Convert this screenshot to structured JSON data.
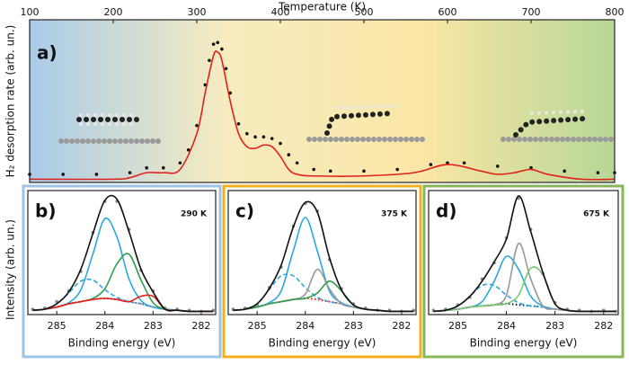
{
  "chart_data": [
    {
      "type": "line",
      "panel_label": "a)",
      "xlabel": "Temperature (K)",
      "ylabel": "H₂ desorption rate (arb. un.)",
      "xaxis_position": "top",
      "background": [
        "#a9cbe9",
        "#f6ecc0",
        "#fbe6a6",
        "#b7d796"
      ],
      "xlim": [
        100,
        800
      ],
      "xticks": [
        100,
        200,
        300,
        400,
        500,
        600,
        700,
        800
      ],
      "ylim": [
        0,
        1
      ],
      "series": [
        {
          "color": "#111111",
          "mode": "markers",
          "x": [
            100,
            140,
            180,
            220,
            240,
            260,
            280,
            290,
            300,
            310,
            315,
            320,
            325,
            330,
            335,
            340,
            350,
            360,
            370,
            380,
            390,
            400,
            410,
            420,
            440,
            460,
            500,
            540,
            580,
            600,
            620,
            660,
            700,
            740,
            780,
            800
          ],
          "values": [
            0.05,
            0.05,
            0.05,
            0.06,
            0.09,
            0.09,
            0.12,
            0.2,
            0.35,
            0.6,
            0.75,
            0.85,
            0.86,
            0.82,
            0.7,
            0.55,
            0.36,
            0.3,
            0.28,
            0.28,
            0.27,
            0.24,
            0.17,
            0.12,
            0.08,
            0.07,
            0.07,
            0.08,
            0.11,
            0.12,
            0.12,
            0.1,
            0.09,
            0.07,
            0.06,
            0.06
          ]
        },
        {
          "color": "#e3201b",
          "mode": "line",
          "x": [
            100,
            200,
            220,
            240,
            260,
            280,
            300,
            310,
            320,
            325,
            330,
            340,
            350,
            360,
            370,
            380,
            390,
            400,
            410,
            420,
            440,
            500,
            560,
            600,
            640,
            660,
            680,
            700,
            720,
            760,
            800
          ],
          "values": [
            0.02,
            0.02,
            0.03,
            0.06,
            0.06,
            0.08,
            0.3,
            0.55,
            0.78,
            0.8,
            0.75,
            0.5,
            0.3,
            0.22,
            0.21,
            0.23,
            0.22,
            0.16,
            0.08,
            0.05,
            0.04,
            0.04,
            0.06,
            0.11,
            0.07,
            0.05,
            0.06,
            0.08,
            0.05,
            0.02,
            0.02
          ]
        }
      ]
    },
    {
      "type": "line",
      "panel_label": "b)",
      "annotation": "290 K",
      "xlabel": "Binding energy (eV)",
      "ylabel": "Intensity (arb. un.)",
      "frame_color": "#9ec3e6",
      "xlim": [
        285.6,
        281.7
      ],
      "xticks": [
        285,
        284,
        283,
        282
      ],
      "ylim": [
        0,
        1.15
      ],
      "x": [
        285.5,
        285.25,
        285,
        284.75,
        284.5,
        284.25,
        284,
        283.75,
        283.5,
        283.25,
        283,
        282.75,
        282.5,
        282.25,
        282,
        281.75
      ],
      "series": [
        {
          "color": "#e3201b",
          "mode": "line",
          "dash": "dotted",
          "values": [
            0.04,
            0.05,
            0.07,
            0.1,
            0.12,
            0.14,
            0.15,
            0.14,
            0.12,
            0.1,
            0.07,
            0.05,
            0.04,
            0.03,
            0.03,
            0.03
          ]
        },
        {
          "color": "#29a8e0",
          "mode": "line",
          "dash": "dashed",
          "values": [
            0.04,
            0.05,
            0.1,
            0.2,
            0.31,
            0.32,
            0.23,
            0.16,
            0.12,
            0.1,
            0.07,
            0.05,
            0.04,
            0.03,
            0.03,
            0.03
          ]
        },
        {
          "color": "#29a8e0",
          "mode": "line",
          "values": [
            0.04,
            0.05,
            0.07,
            0.11,
            0.23,
            0.56,
            0.89,
            0.72,
            0.33,
            0.13,
            0.07,
            0.05,
            0.04,
            0.03,
            0.03,
            0.03
          ]
        },
        {
          "color": "#2e9e4f",
          "mode": "line",
          "values": [
            0.04,
            0.05,
            0.07,
            0.1,
            0.12,
            0.15,
            0.24,
            0.47,
            0.56,
            0.32,
            0.11,
            0.05,
            0.04,
            0.03,
            0.03,
            0.03
          ]
        },
        {
          "color": "#e3201b",
          "mode": "line",
          "values": [
            0.04,
            0.05,
            0.07,
            0.1,
            0.12,
            0.14,
            0.15,
            0.14,
            0.12,
            0.17,
            0.17,
            0.05,
            0.04,
            0.03,
            0.03,
            0.03
          ]
        },
        {
          "color": "#888888",
          "mode": "markers",
          "values": [
            0.05,
            0.06,
            0.12,
            0.22,
            0.4,
            0.76,
            1.05,
            1.05,
            0.79,
            0.41,
            0.22,
            0.06,
            0.05,
            0.04,
            0.03,
            0.04
          ]
        },
        {
          "color": "#111111",
          "mode": "line",
          "values": [
            0.04,
            0.05,
            0.1,
            0.21,
            0.42,
            0.75,
            1.06,
            1.07,
            0.77,
            0.42,
            0.21,
            0.05,
            0.04,
            0.03,
            0.03,
            0.03
          ]
        }
      ]
    },
    {
      "type": "line",
      "panel_label": "c)",
      "annotation": "375 K",
      "xlabel": "Binding energy (eV)",
      "frame_color": "#f2b01e",
      "xlim": [
        285.6,
        281.7
      ],
      "xticks": [
        285,
        284,
        283,
        282
      ],
      "ylim": [
        0,
        1.15
      ],
      "x": [
        285.5,
        285.25,
        285,
        284.75,
        284.5,
        284.25,
        284,
        283.75,
        283.5,
        283.25,
        283,
        282.75,
        282.5,
        282.25,
        282,
        281.75
      ],
      "series": [
        {
          "color": "#e3201b",
          "mode": "line",
          "dash": "dotted",
          "values": [
            0.04,
            0.05,
            0.07,
            0.1,
            0.12,
            0.14,
            0.15,
            0.14,
            0.12,
            0.1,
            0.07,
            0.05,
            0.04,
            0.03,
            0.03,
            0.03
          ]
        },
        {
          "color": "#29a8e0",
          "mode": "line",
          "dash": "dashed",
          "values": [
            0.04,
            0.05,
            0.1,
            0.23,
            0.36,
            0.36,
            0.25,
            0.16,
            0.12,
            0.1,
            0.07,
            0.05,
            0.04,
            0.03,
            0.03,
            0.03
          ]
        },
        {
          "color": "#29a8e0",
          "mode": "line",
          "values": [
            0.04,
            0.05,
            0.07,
            0.11,
            0.22,
            0.59,
            0.9,
            0.59,
            0.22,
            0.11,
            0.07,
            0.05,
            0.04,
            0.03,
            0.03,
            0.03
          ]
        },
        {
          "color": "#999999",
          "mode": "line",
          "values": [
            0.04,
            0.05,
            0.07,
            0.1,
            0.12,
            0.14,
            0.19,
            0.42,
            0.24,
            0.1,
            0.07,
            0.05,
            0.04,
            0.03,
            0.03,
            0.03
          ]
        },
        {
          "color": "#2e9e4f",
          "mode": "line",
          "values": [
            0.04,
            0.05,
            0.07,
            0.1,
            0.12,
            0.14,
            0.15,
            0.2,
            0.31,
            0.22,
            0.09,
            0.05,
            0.04,
            0.03,
            0.03,
            0.03
          ]
        },
        {
          "color": "#888888",
          "mode": "markers",
          "values": [
            0.05,
            0.06,
            0.09,
            0.25,
            0.44,
            0.82,
            1.03,
            0.96,
            0.51,
            0.24,
            0.1,
            0.06,
            0.04,
            0.04,
            0.03,
            0.04
          ]
        },
        {
          "color": "#111111",
          "mode": "line",
          "values": [
            0.04,
            0.05,
            0.1,
            0.24,
            0.46,
            0.81,
            1.04,
            0.95,
            0.53,
            0.23,
            0.09,
            0.05,
            0.04,
            0.03,
            0.03,
            0.03
          ]
        }
      ]
    },
    {
      "type": "line",
      "panel_label": "d)",
      "annotation": "675 K",
      "xlabel": "Binding energy (eV)",
      "frame_color": "#86b85a",
      "xlim": [
        285.6,
        281.7
      ],
      "xticks": [
        285,
        284,
        283,
        282
      ],
      "ylim": [
        0,
        1.15
      ],
      "x": [
        285.5,
        285.25,
        285,
        284.75,
        284.5,
        284.25,
        284,
        283.75,
        283.5,
        283.25,
        283,
        282.75,
        282.5,
        282.25,
        282,
        281.75
      ],
      "series": [
        {
          "color": "#111111",
          "mode": "line",
          "dash": "dotted",
          "values": [
            0.03,
            0.04,
            0.05,
            0.07,
            0.08,
            0.09,
            0.1,
            0.09,
            0.08,
            0.07,
            0.05,
            0.04,
            0.03,
            0.03,
            0.03,
            0.03
          ]
        },
        {
          "color": "#29a8e0",
          "mode": "line",
          "dash": "dashed",
          "values": [
            0.03,
            0.04,
            0.08,
            0.17,
            0.27,
            0.27,
            0.18,
            0.11,
            0.08,
            0.07,
            0.05,
            0.04,
            0.03,
            0.03,
            0.03,
            0.03
          ]
        },
        {
          "color": "#29a8e0",
          "mode": "line",
          "values": [
            0.03,
            0.04,
            0.05,
            0.07,
            0.12,
            0.31,
            0.54,
            0.42,
            0.17,
            0.08,
            0.05,
            0.04,
            0.03,
            0.03,
            0.03,
            0.03
          ]
        },
        {
          "color": "#999999",
          "mode": "line",
          "values": [
            0.03,
            0.04,
            0.05,
            0.07,
            0.08,
            0.09,
            0.18,
            0.66,
            0.33,
            0.08,
            0.05,
            0.04,
            0.03,
            0.03,
            0.03,
            0.03
          ]
        },
        {
          "color": "#7cc576",
          "mode": "line",
          "values": [
            0.03,
            0.04,
            0.05,
            0.07,
            0.08,
            0.09,
            0.1,
            0.18,
            0.43,
            0.37,
            0.1,
            0.04,
            0.03,
            0.03,
            0.03,
            0.03
          ]
        },
        {
          "color": "#888888",
          "mode": "markers",
          "values": [
            0.04,
            0.05,
            0.09,
            0.16,
            0.33,
            0.48,
            0.71,
            1.08,
            0.79,
            0.38,
            0.11,
            0.05,
            0.04,
            0.03,
            0.04,
            0.03
          ]
        },
        {
          "color": "#111111",
          "mode": "line",
          "values": [
            0.03,
            0.04,
            0.08,
            0.17,
            0.31,
            0.49,
            0.7,
            1.1,
            0.77,
            0.39,
            0.1,
            0.04,
            0.03,
            0.03,
            0.03,
            0.03
          ]
        }
      ]
    }
  ]
}
